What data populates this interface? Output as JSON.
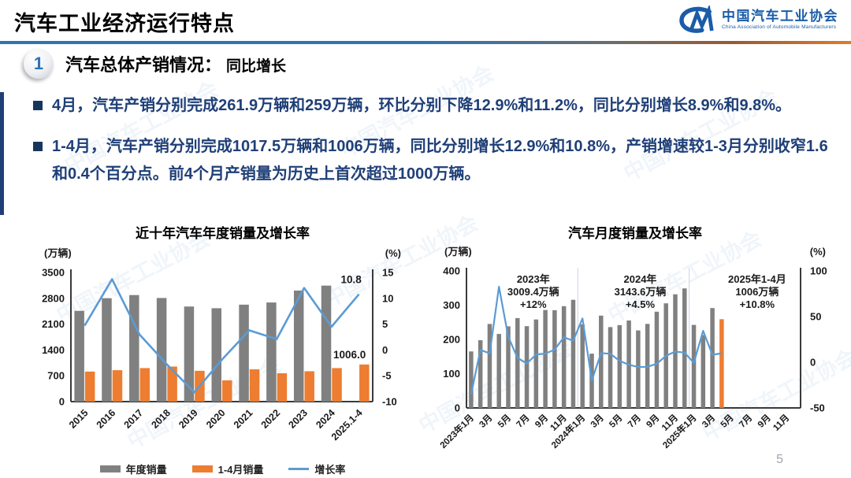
{
  "header": {
    "title": "汽车工业经济运行特点",
    "logo": {
      "org_cn": "中国汽车工业协会",
      "org_en": "China Association of Automobile Manufacturers"
    }
  },
  "section": {
    "number": "1",
    "title": "汽车总体产销情况：",
    "subtitle": "同比增长"
  },
  "bullets": [
    "4月，汽车产销分别完成261.9万辆和259万辆，环比分别下降12.9%和11.2%，同比分别增长8.9%和9.8%。",
    "1-4月，汽车产销分别完成1017.5万辆和1006万辆，同比分别增长12.9%和10.8%，产销增速较1-3月分别收窄1.6和0.4个百分点。前4个月产销量为历史上首次超过1000万辆。"
  ],
  "watermark": "中国汽车工业协会",
  "page": {
    "number": "5"
  },
  "colors": {
    "accent_blue": "#2E74B5",
    "rule_orange": "#E07B2A",
    "bar_gray": "#808080",
    "bar_orange": "#ED7D31",
    "line_blue": "#5B9BD5",
    "text_navy": "#1F3F77"
  },
  "chart_data": [
    {
      "type": "bar+line",
      "title": "近十年汽车年度销量及增长率",
      "unit_left": "(万辆)",
      "unit_right": "(%)",
      "categories": [
        "2015",
        "2016",
        "2017",
        "2018",
        "2019",
        "2020",
        "2021",
        "2022",
        "2023",
        "2024",
        "2025.1-4"
      ],
      "series": [
        {
          "name": "年度销量",
          "type": "bar",
          "axis": "left",
          "color": "#808080",
          "values": [
            2459.8,
            2802.8,
            2887.9,
            2808.1,
            2576.9,
            2531.1,
            2627.5,
            2686.4,
            3009.4,
            3143.6,
            null
          ]
        },
        {
          "name": "1-4月销量",
          "type": "bar",
          "axis": "left",
          "color": "#ED7D31",
          "values": [
            814.5,
            852.2,
            908.6,
            950.1,
            835.3,
            576.1,
            874.8,
            769.1,
            823.5,
            907.9,
            1006.0
          ]
        },
        {
          "name": "增长率",
          "type": "line",
          "axis": "right",
          "color": "#5B9BD5",
          "values": [
            4.7,
            13.7,
            3.0,
            -2.8,
            -8.2,
            -1.9,
            3.8,
            2.1,
            12.0,
            4.5,
            10.8
          ]
        }
      ],
      "ylim_left": [
        0,
        3500
      ],
      "yticks_left": [
        0,
        700,
        1400,
        2100,
        2800,
        3500
      ],
      "ylim_right": [
        -10,
        15
      ],
      "yticks_right": [
        -10,
        -5,
        0,
        5,
        10,
        15
      ],
      "annotations": [
        {
          "text": "10.8",
          "attach": "line_end"
        },
        {
          "text": "1006.0",
          "attach": "last_bar_top"
        }
      ],
      "legend_position": "bottom",
      "grid": false
    },
    {
      "type": "bar+line",
      "title": "汽车月度销量及增长率",
      "unit_left": "(万辆)",
      "unit_right": "(%)",
      "x_slots": 36,
      "x_tick_step": 2,
      "x_tick_labels": [
        "2023年1月",
        "3月",
        "5月",
        "7月",
        "9月",
        "11月",
        "2024年1月",
        "3月",
        "5月",
        "7月",
        "9月",
        "11月",
        "2025年1月",
        "3月",
        "5月",
        "7月",
        "9月",
        "11月"
      ],
      "series": [
        {
          "name": "月度销量",
          "type": "bar",
          "axis": "left",
          "color": "#808080",
          "highlight_last_color": "#ED7D31",
          "values": [
            164.9,
            197.6,
            245.1,
            215.9,
            238.2,
            262.2,
            238.7,
            258.2,
            285.8,
            285.3,
            297.0,
            315.6,
            243.9,
            158.4,
            269.4,
            235.9,
            241.7,
            255.2,
            226.2,
            245.3,
            280.9,
            305.3,
            331.6,
            348.9,
            242.3,
            212.9,
            291.5,
            259.0
          ]
        },
        {
          "name": "增长率",
          "type": "line",
          "axis": "right",
          "color": "#5B9BD5",
          "values": [
            -35.0,
            13.5,
            9.7,
            82.7,
            27.9,
            4.8,
            -1.4,
            8.4,
            9.5,
            13.8,
            27.4,
            23.5,
            47.9,
            -19.9,
            9.9,
            9.3,
            1.5,
            -2.7,
            -5.2,
            -5.0,
            -1.7,
            7.0,
            11.7,
            10.5,
            -0.6,
            34.4,
            8.2,
            9.8
          ]
        }
      ],
      "ylim_left": [
        0,
        400
      ],
      "yticks_left": [
        0,
        100,
        200,
        300,
        400
      ],
      "ylim_right": [
        -50,
        100
      ],
      "yticks_right": [
        -50,
        0,
        50,
        100
      ],
      "separators_after_index": [
        11,
        23
      ],
      "annotations": [
        {
          "lines": [
            "2023年",
            "3009.4万辆",
            "+12%"
          ],
          "x_frac": 0.2
        },
        {
          "lines": [
            "2024年",
            "3143.6万辆",
            "+4.5%"
          ],
          "x_frac": 0.52
        },
        {
          "lines": [
            "2025年1-4月",
            "1006万辆",
            "+10.8%"
          ],
          "x_frac": 0.87
        }
      ],
      "grid": false
    }
  ]
}
